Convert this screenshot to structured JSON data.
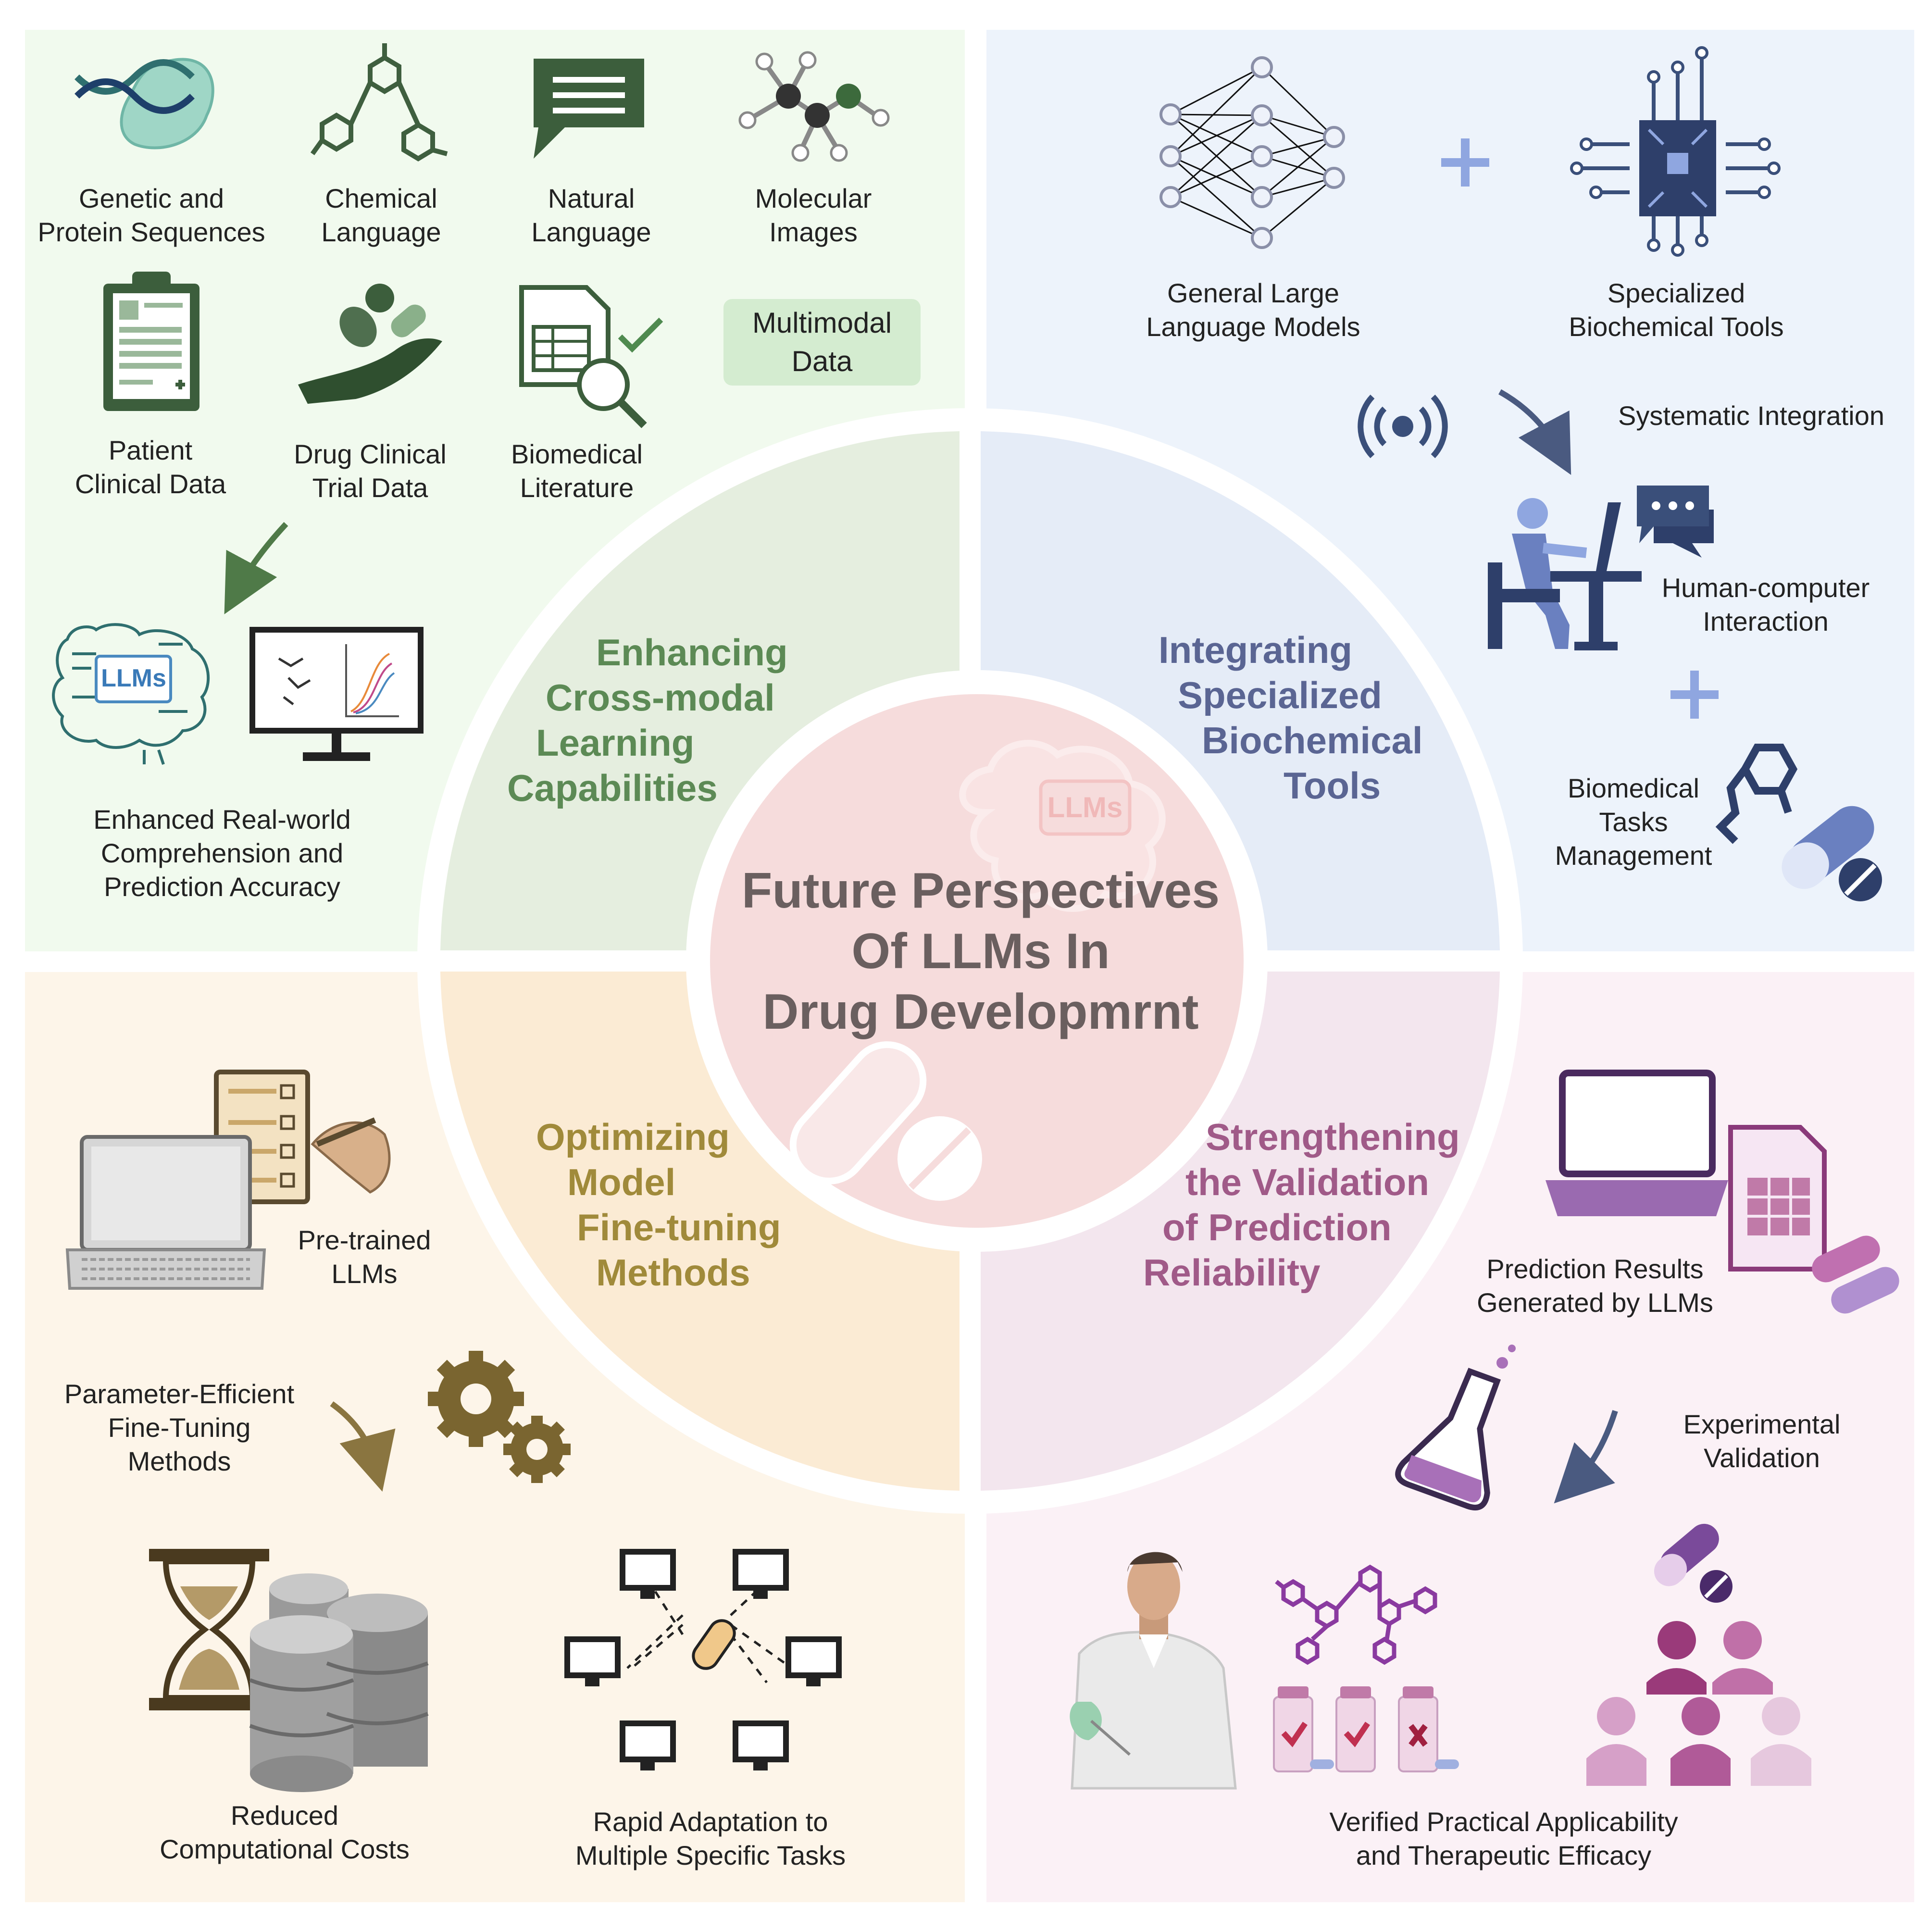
{
  "center": {
    "title_lines": [
      "Future Perspectives",
      "Of LLMs In",
      "Drug Developmrnt"
    ],
    "brain_badge": "LLMs"
  },
  "colors": {
    "tl_bg": "#f1faee",
    "tr_bg": "#edf3fb",
    "bl_bg": "#fdf5e9",
    "br_bg": "#fbf1f6",
    "tl_ring": "#e5eedf",
    "tr_ring": "#e5ecf7",
    "bl_ring": "#fbebd4",
    "br_ring": "#f3e6ee",
    "hub": "#f6dcdc",
    "tl_theme": "#5c8a55",
    "tr_theme": "#5a6593",
    "bl_theme": "#a08a3a",
    "br_theme": "#a05a88"
  },
  "quadrants": {
    "tl": {
      "theme": [
        "Enhancing",
        "Cross-modal",
        "Learning",
        "Capabilities"
      ],
      "items": [
        {
          "icon": "dna-protein-icon",
          "lines": [
            "Genetic and",
            "Protein Sequences"
          ]
        },
        {
          "icon": "chemical-structure-icon",
          "lines": [
            "Chemical",
            "Language"
          ]
        },
        {
          "icon": "speech-bubble-icon",
          "lines": [
            "Natural",
            "Language"
          ]
        },
        {
          "icon": "molecule-model-icon",
          "lines": [
            "Molecular",
            "Images"
          ]
        },
        {
          "icon": "clipboard-icon",
          "lines": [
            "Patient",
            "Clinical Data"
          ]
        },
        {
          "icon": "hand-pills-icon",
          "lines": [
            "Drug Clinical",
            "Trial Data"
          ]
        },
        {
          "icon": "document-search-icon",
          "lines": [
            "Biomedical",
            "Literature"
          ]
        },
        {
          "icon": "llm-brain-chip-icon",
          "lines": [
            "Enhanced Real-world",
            "Comprehension and",
            "Prediction Accuracy"
          ]
        }
      ],
      "multimodal_box": [
        "Multimodal",
        "Data"
      ],
      "chip_badge": "LLMs"
    },
    "tr": {
      "theme": [
        "Integrating",
        "Specialized",
        "Biochemical",
        "Tools"
      ],
      "items": [
        {
          "icon": "neural-network-icon",
          "lines": [
            "General Large",
            "Language Models"
          ]
        },
        {
          "icon": "circuit-chip-icon",
          "lines": [
            "Specialized",
            "Biochemical Tools"
          ]
        },
        {
          "icon": "arrow-icon",
          "lines": [
            "Systematic Integration"
          ]
        },
        {
          "icon": "person-computer-icon",
          "lines": [
            "Human-computer",
            "Interaction"
          ]
        },
        {
          "icon": "molecule-pill-icon",
          "lines": [
            "Biomedical",
            "Tasks",
            "Management"
          ]
        }
      ],
      "plus_sign": "+"
    },
    "bl": {
      "theme": [
        "Optimizing",
        "Model",
        "Fine-tuning",
        "Methods"
      ],
      "items": [
        {
          "icon": "laptop-checklist-icon",
          "lines": [
            "Pre-trained",
            "LLMs"
          ]
        },
        {
          "icon": "gears-icon",
          "lines": [
            "Parameter-Efficient",
            "Fine-Tuning",
            "Methods"
          ]
        },
        {
          "icon": "hourglass-database-icon",
          "lines": [
            "Reduced",
            "Computational Costs"
          ]
        },
        {
          "icon": "network-monitors-icon",
          "lines": [
            "Rapid Adaptation to",
            "Multiple Specific Tasks"
          ]
        }
      ]
    },
    "br": {
      "theme": [
        "Strengthening",
        "the Validation",
        "of Prediction",
        "Reliability"
      ],
      "items": [
        {
          "icon": "laptop-report-icon",
          "lines": [
            "Prediction Results",
            "Generated by LLMs"
          ]
        },
        {
          "icon": "flask-icon",
          "lines": [
            "Experimental",
            "Validation"
          ]
        },
        {
          "icon": "scientist-icon",
          "lines": [
            "Verified Practical Applicability",
            "and Therapeutic Efficacy"
          ]
        }
      ]
    }
  }
}
